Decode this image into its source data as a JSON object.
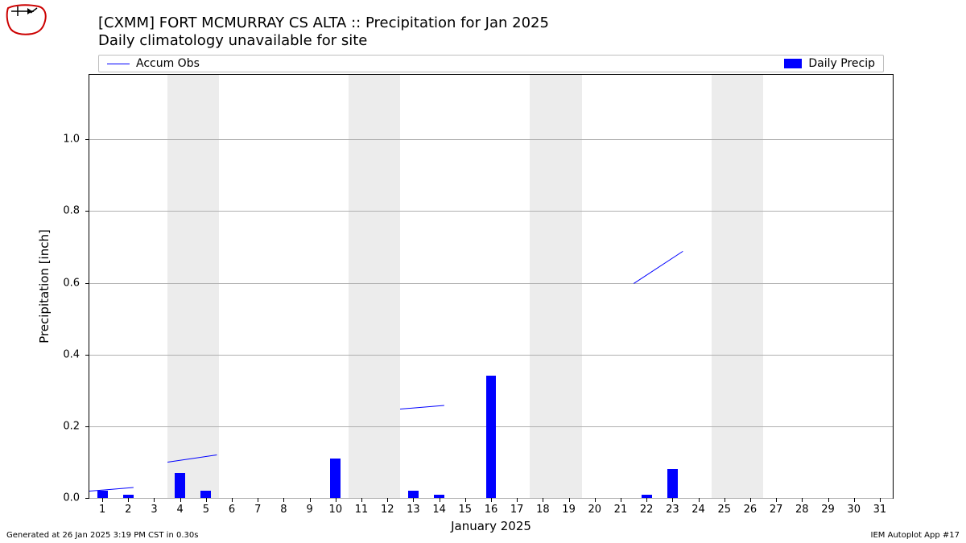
{
  "title": "[CXMM] FORT MCMURRAY CS  ALTA :: Precipitation for Jan 2025",
  "subtitle": "Daily climatology unavailable for site",
  "xlabel": "January 2025",
  "ylabel": "Precipitation [inch]",
  "legend": {
    "accum_label": "Accum Obs",
    "daily_label": "Daily Precip"
  },
  "footer_left": "Generated at 26 Jan 2025 3:19 PM CST in 0.30s",
  "footer_right": "IEM Autoplot App #17",
  "chart": {
    "type": "bar+line",
    "x_days": [
      1,
      2,
      3,
      4,
      5,
      6,
      7,
      8,
      9,
      10,
      11,
      12,
      13,
      14,
      15,
      16,
      17,
      18,
      19,
      20,
      21,
      22,
      23,
      24,
      25,
      26,
      27,
      28,
      29,
      30,
      31
    ],
    "x_domain": [
      0.5,
      31.5
    ],
    "ylim": [
      0.0,
      1.18
    ],
    "yticks": [
      0.0,
      0.2,
      0.4,
      0.6,
      0.8,
      1.0
    ],
    "ytick_labels": [
      "0.0",
      "0.2",
      "0.4",
      "0.6",
      "0.8",
      "1.0"
    ],
    "grid_color": "#b0b0b0",
    "background_color": "#ffffff",
    "weekend_band_color": "#ececec",
    "weekend_bands": [
      [
        3.5,
        5.5
      ],
      [
        10.5,
        12.5
      ],
      [
        17.5,
        19.5
      ],
      [
        24.5,
        26.5
      ]
    ],
    "bar_color": "#0000ff",
    "bar_width": 0.4,
    "daily_precip": [
      0.02,
      0.01,
      0,
      0.07,
      0.02,
      0,
      0,
      0,
      0,
      0.11,
      0,
      0,
      0.02,
      0.01,
      0,
      0.34,
      0,
      0,
      0,
      0,
      0,
      0.01,
      0.08,
      0,
      0,
      0,
      0,
      0,
      0,
      0,
      0
    ],
    "line_color": "#0000ff",
    "accum_segments": [
      [
        [
          0.5,
          0.02
        ],
        [
          2.2,
          0.03
        ]
      ],
      [
        [
          3.5,
          0.1
        ],
        [
          5.4,
          0.12
        ]
      ],
      [
        [
          12.5,
          0.25
        ],
        [
          14.2,
          0.26
        ]
      ],
      [
        [
          21.5,
          0.6
        ],
        [
          23.4,
          0.69
        ]
      ]
    ]
  }
}
